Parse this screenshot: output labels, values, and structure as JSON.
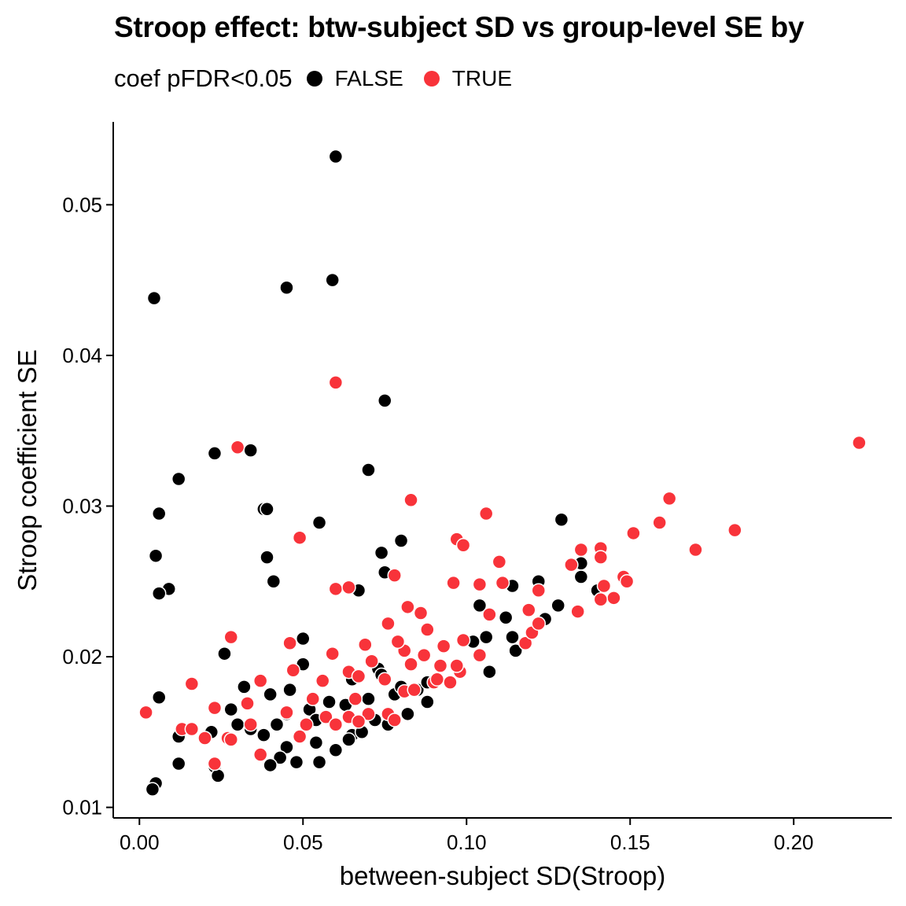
{
  "chart_data": {
    "type": "scatter",
    "title": "Stroop effect: btw-subject SD vs group-level SE by",
    "xlabel": "between-subject SD(Stroop)",
    "ylabel": "Stroop coefficient SE",
    "xlim": [
      -0.008,
      0.23
    ],
    "ylim": [
      0.0093,
      0.0555
    ],
    "xticks": [
      "0.00",
      "0.05",
      "0.10",
      "0.15",
      "0.20"
    ],
    "xtick_values": [
      0,
      0.05,
      0.1,
      0.15,
      0.2
    ],
    "yticks": [
      "0.01",
      "0.02",
      "0.03",
      "0.04",
      "0.05"
    ],
    "ytick_values": [
      0.01,
      0.02,
      0.03,
      0.04,
      0.05
    ],
    "grid": false,
    "legend": {
      "title": "coef pFDR<0.05",
      "placement": "top-left",
      "entries": [
        {
          "label": "FALSE",
          "color": "#000000"
        },
        {
          "label": "TRUE",
          "color": "#F8333A"
        }
      ]
    },
    "series": [
      {
        "name": "FALSE",
        "color": "#000000",
        "points": [
          [
            0.06,
            0.0532
          ],
          [
            0.0045,
            0.0438
          ],
          [
            0.045,
            0.0445
          ],
          [
            0.059,
            0.045
          ],
          [
            0.075,
            0.037
          ],
          [
            0.034,
            0.0337
          ],
          [
            0.023,
            0.0335
          ],
          [
            0.07,
            0.0324
          ],
          [
            0.012,
            0.0318
          ],
          [
            0.038,
            0.0298
          ],
          [
            0.039,
            0.0298
          ],
          [
            0.006,
            0.0295
          ],
          [
            0.055,
            0.0289
          ],
          [
            0.129,
            0.0291
          ],
          [
            0.074,
            0.0269
          ],
          [
            0.08,
            0.0277
          ],
          [
            0.005,
            0.0267
          ],
          [
            0.039,
            0.0266
          ],
          [
            0.075,
            0.0256
          ],
          [
            0.135,
            0.0262
          ],
          [
            0.009,
            0.0245
          ],
          [
            0.006,
            0.0242
          ],
          [
            0.041,
            0.025
          ],
          [
            0.067,
            0.0244
          ],
          [
            0.114,
            0.0247
          ],
          [
            0.122,
            0.025
          ],
          [
            0.135,
            0.0253
          ],
          [
            0.14,
            0.0244
          ],
          [
            0.104,
            0.0234
          ],
          [
            0.128,
            0.0234
          ],
          [
            0.112,
            0.0226
          ],
          [
            0.124,
            0.0225
          ],
          [
            0.106,
            0.0213
          ],
          [
            0.114,
            0.0213
          ],
          [
            0.102,
            0.021
          ],
          [
            0.05,
            0.0212
          ],
          [
            0.026,
            0.0202
          ],
          [
            0.05,
            0.0195
          ],
          [
            0.115,
            0.0204
          ],
          [
            0.098,
            0.019
          ],
          [
            0.107,
            0.019
          ],
          [
            0.073,
            0.0192
          ],
          [
            0.032,
            0.018
          ],
          [
            0.04,
            0.0175
          ],
          [
            0.046,
            0.0178
          ],
          [
            0.006,
            0.0173
          ],
          [
            0.052,
            0.0165
          ],
          [
            0.058,
            0.017
          ],
          [
            0.063,
            0.0168
          ],
          [
            0.07,
            0.0172
          ],
          [
            0.078,
            0.0175
          ],
          [
            0.085,
            0.0178
          ],
          [
            0.028,
            0.0165
          ],
          [
            0.03,
            0.0155
          ],
          [
            0.034,
            0.0152
          ],
          [
            0.038,
            0.0148
          ],
          [
            0.042,
            0.0155
          ],
          [
            0.045,
            0.0162
          ],
          [
            0.054,
            0.0158
          ],
          [
            0.06,
            0.0155
          ],
          [
            0.065,
            0.0148
          ],
          [
            0.072,
            0.0158
          ],
          [
            0.076,
            0.0155
          ],
          [
            0.082,
            0.0162
          ],
          [
            0.088,
            0.017
          ],
          [
            0.012,
            0.0147
          ],
          [
            0.022,
            0.015
          ],
          [
            0.045,
            0.014
          ],
          [
            0.054,
            0.0143
          ],
          [
            0.06,
            0.0138
          ],
          [
            0.064,
            0.0145
          ],
          [
            0.068,
            0.015
          ],
          [
            0.043,
            0.0133
          ],
          [
            0.048,
            0.013
          ],
          [
            0.055,
            0.013
          ],
          [
            0.04,
            0.0128
          ],
          [
            0.012,
            0.0129
          ],
          [
            0.023,
            0.0127
          ],
          [
            0.024,
            0.0121
          ],
          [
            0.005,
            0.0116
          ],
          [
            0.004,
            0.0112
          ],
          [
            0.065,
            0.0185
          ],
          [
            0.074,
            0.0188
          ],
          [
            0.08,
            0.018
          ],
          [
            0.088,
            0.0183
          ]
        ]
      },
      {
        "name": "TRUE",
        "color": "#F8333A",
        "points": [
          [
            0.06,
            0.0382
          ],
          [
            0.22,
            0.0342
          ],
          [
            0.03,
            0.0339
          ],
          [
            0.083,
            0.0304
          ],
          [
            0.162,
            0.0305
          ],
          [
            0.106,
            0.0295
          ],
          [
            0.159,
            0.0289
          ],
          [
            0.182,
            0.0284
          ],
          [
            0.151,
            0.0282
          ],
          [
            0.049,
            0.0279
          ],
          [
            0.097,
            0.0278
          ],
          [
            0.099,
            0.0274
          ],
          [
            0.135,
            0.0271
          ],
          [
            0.141,
            0.0272
          ],
          [
            0.17,
            0.0271
          ],
          [
            0.11,
            0.0263
          ],
          [
            0.141,
            0.0266
          ],
          [
            0.132,
            0.0261
          ],
          [
            0.078,
            0.0254
          ],
          [
            0.111,
            0.0249
          ],
          [
            0.096,
            0.0249
          ],
          [
            0.104,
            0.0248
          ],
          [
            0.148,
            0.0253
          ],
          [
            0.149,
            0.025
          ],
          [
            0.06,
            0.0245
          ],
          [
            0.064,
            0.0246
          ],
          [
            0.142,
            0.0247
          ],
          [
            0.145,
            0.0239
          ],
          [
            0.141,
            0.0238
          ],
          [
            0.134,
            0.023
          ],
          [
            0.082,
            0.0233
          ],
          [
            0.086,
            0.0229
          ],
          [
            0.107,
            0.0228
          ],
          [
            0.076,
            0.0222
          ],
          [
            0.119,
            0.0231
          ],
          [
            0.122,
            0.0244
          ],
          [
            0.088,
            0.0218
          ],
          [
            0.046,
            0.0209
          ],
          [
            0.028,
            0.0213
          ],
          [
            0.081,
            0.0204
          ],
          [
            0.093,
            0.0207
          ],
          [
            0.118,
            0.0209
          ],
          [
            0.12,
            0.0216
          ],
          [
            0.122,
            0.0222
          ],
          [
            0.099,
            0.0211
          ],
          [
            0.059,
            0.0202
          ],
          [
            0.069,
            0.0208
          ],
          [
            0.079,
            0.021
          ],
          [
            0.087,
            0.0201
          ],
          [
            0.104,
            0.0201
          ],
          [
            0.047,
            0.0191
          ],
          [
            0.064,
            0.019
          ],
          [
            0.071,
            0.0197
          ],
          [
            0.083,
            0.0195
          ],
          [
            0.092,
            0.0194
          ],
          [
            0.098,
            0.019
          ],
          [
            0.016,
            0.0182
          ],
          [
            0.037,
            0.0184
          ],
          [
            0.056,
            0.0184
          ],
          [
            0.067,
            0.0187
          ],
          [
            0.075,
            0.0185
          ],
          [
            0.09,
            0.0183
          ],
          [
            0.081,
            0.0177
          ],
          [
            0.095,
            0.0183
          ],
          [
            0.033,
            0.0169
          ],
          [
            0.053,
            0.0172
          ],
          [
            0.066,
            0.0172
          ],
          [
            0.002,
            0.0163
          ],
          [
            0.023,
            0.0166
          ],
          [
            0.045,
            0.0163
          ],
          [
            0.057,
            0.016
          ],
          [
            0.064,
            0.016
          ],
          [
            0.07,
            0.0162
          ],
          [
            0.076,
            0.0162
          ],
          [
            0.078,
            0.0158
          ],
          [
            0.013,
            0.0152
          ],
          [
            0.016,
            0.0152
          ],
          [
            0.034,
            0.0155
          ],
          [
            0.051,
            0.0155
          ],
          [
            0.06,
            0.0155
          ],
          [
            0.067,
            0.0157
          ],
          [
            0.027,
            0.0146
          ],
          [
            0.028,
            0.0145
          ],
          [
            0.02,
            0.0146
          ],
          [
            0.049,
            0.0147
          ],
          [
            0.037,
            0.0135
          ],
          [
            0.023,
            0.0129
          ],
          [
            0.084,
            0.0178
          ],
          [
            0.091,
            0.0185
          ],
          [
            0.097,
            0.0194
          ]
        ]
      }
    ]
  }
}
